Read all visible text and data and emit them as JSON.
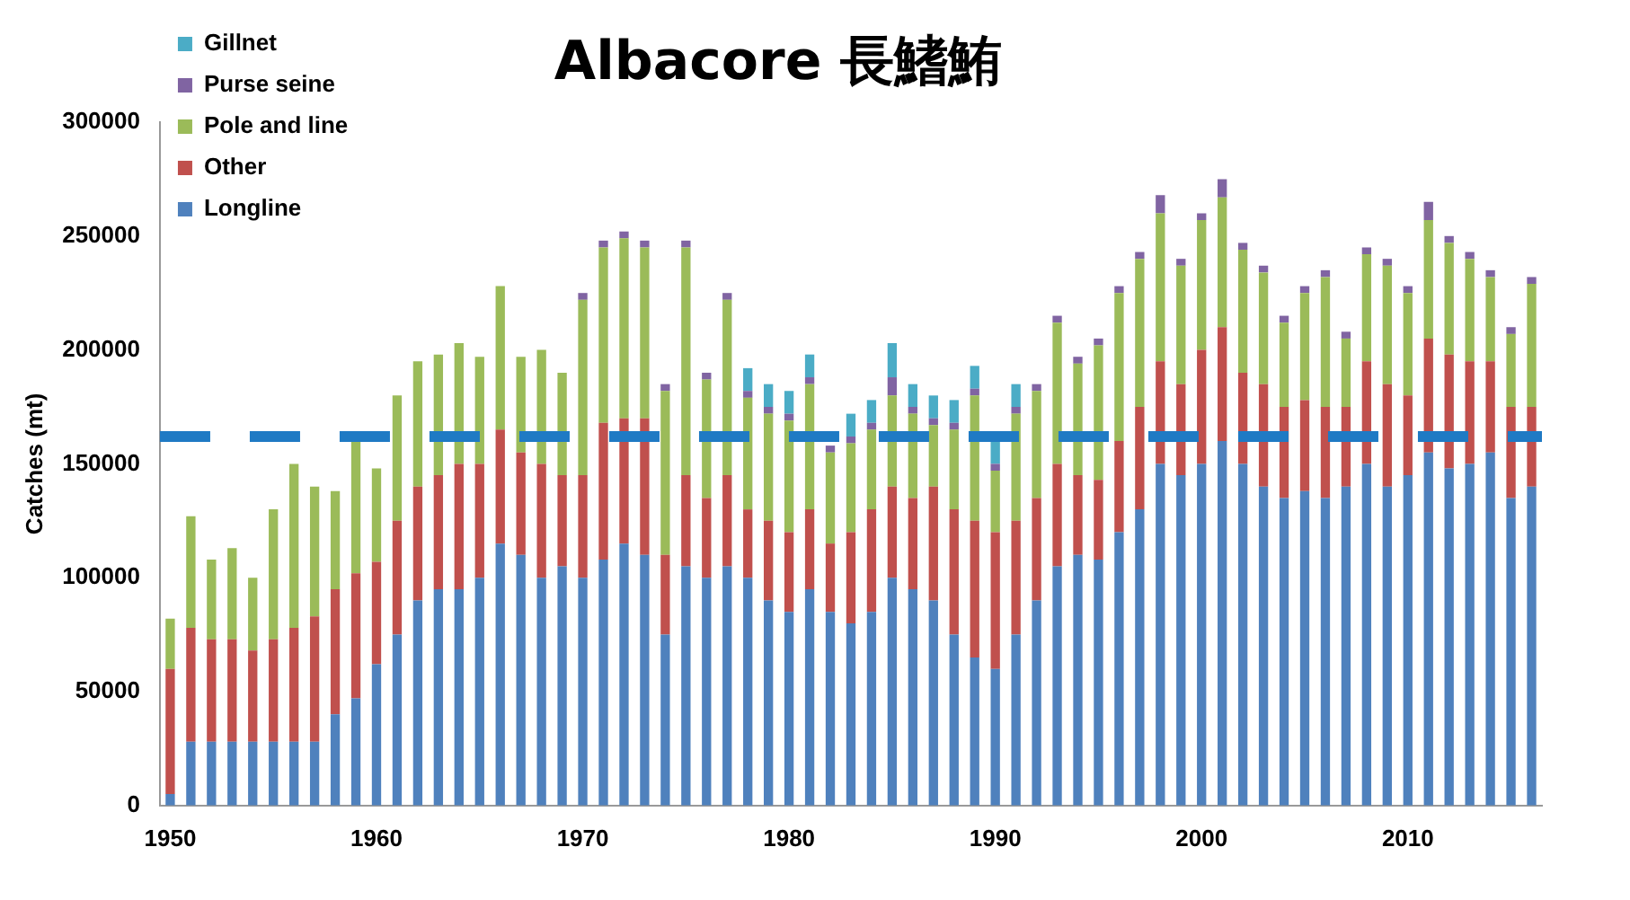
{
  "chart_data": {
    "type": "bar",
    "stacked": true,
    "title": "Albacore 長鰭鮪",
    "ylabel": "Catches (mt)",
    "categories": [
      "1950",
      null,
      null,
      null,
      null,
      null,
      null,
      null,
      null,
      null,
      "1960",
      null,
      null,
      null,
      null,
      null,
      null,
      null,
      null,
      null,
      "1970",
      null,
      null,
      null,
      null,
      null,
      null,
      null,
      null,
      null,
      "1980",
      null,
      null,
      null,
      null,
      null,
      null,
      null,
      null,
      null,
      "1990",
      null,
      null,
      null,
      null,
      null,
      null,
      null,
      null,
      null,
      "2000",
      null,
      null,
      null,
      null,
      null,
      null,
      null,
      null,
      null,
      "2010",
      null,
      null,
      null,
      null,
      null,
      null
    ],
    "series": [
      {
        "name": "Longline",
        "color": "#4f81bd",
        "values": [
          5000,
          28000,
          28000,
          28000,
          28000,
          28000,
          28000,
          28000,
          40000,
          47000,
          62000,
          75000,
          90000,
          95000,
          95000,
          100000,
          115000,
          110000,
          100000,
          105000,
          100000,
          108000,
          115000,
          110000,
          75000,
          105000,
          100000,
          105000,
          100000,
          90000,
          85000,
          95000,
          85000,
          80000,
          85000,
          100000,
          95000,
          90000,
          75000,
          65000,
          60000,
          75000,
          90000,
          105000,
          110000,
          108000,
          120000,
          130000,
          150000,
          145000,
          150000,
          160000,
          150000,
          140000,
          135000,
          138000,
          135000,
          140000,
          150000,
          140000,
          145000,
          155000,
          148000,
          150000,
          155000,
          135000,
          140000
        ]
      },
      {
        "name": "Other",
        "color": "#c0504d",
        "values": [
          55000,
          50000,
          45000,
          45000,
          40000,
          45000,
          50000,
          55000,
          55000,
          55000,
          45000,
          50000,
          50000,
          50000,
          55000,
          50000,
          50000,
          45000,
          50000,
          40000,
          45000,
          60000,
          55000,
          60000,
          35000,
          40000,
          35000,
          40000,
          30000,
          35000,
          35000,
          35000,
          30000,
          40000,
          45000,
          40000,
          40000,
          50000,
          55000,
          60000,
          60000,
          50000,
          45000,
          45000,
          35000,
          35000,
          40000,
          45000,
          45000,
          40000,
          50000,
          50000,
          40000,
          45000,
          40000,
          40000,
          40000,
          35000,
          45000,
          45000,
          35000,
          50000,
          50000,
          45000,
          40000,
          40000,
          35000
        ]
      },
      {
        "name": "Pole and line",
        "color": "#9bbb59",
        "values": [
          22000,
          49000,
          35000,
          40000,
          32000,
          57000,
          72000,
          57000,
          43000,
          58000,
          41000,
          55000,
          55000,
          53000,
          53000,
          47000,
          63000,
          42000,
          50000,
          45000,
          77000,
          77000,
          79000,
          75000,
          72000,
          100000,
          52000,
          77000,
          49000,
          47000,
          49000,
          55000,
          40000,
          39000,
          35000,
          40000,
          37000,
          27000,
          35000,
          55000,
          27000,
          47000,
          47000,
          62000,
          49000,
          59000,
          65000,
          65000,
          65000,
          52000,
          57000,
          57000,
          54000,
          49000,
          37000,
          47000,
          57000,
          30000,
          47000,
          52000,
          45000,
          52000,
          49000,
          45000,
          37000,
          32000,
          54000
        ]
      },
      {
        "name": "Purse seine",
        "color": "#8064a2",
        "values": [
          0,
          0,
          0,
          0,
          0,
          0,
          0,
          0,
          0,
          0,
          0,
          0,
          0,
          0,
          0,
          0,
          0,
          0,
          0,
          0,
          3000,
          3000,
          3000,
          3000,
          3000,
          3000,
          3000,
          3000,
          3000,
          3000,
          3000,
          3000,
          3000,
          3000,
          3000,
          8000,
          3000,
          3000,
          3000,
          3000,
          3000,
          3000,
          3000,
          3000,
          3000,
          3000,
          3000,
          3000,
          8000,
          3000,
          3000,
          8000,
          3000,
          3000,
          3000,
          3000,
          3000,
          3000,
          3000,
          3000,
          3000,
          8000,
          3000,
          3000,
          3000,
          3000,
          3000
        ]
      },
      {
        "name": "Gillnet",
        "color": "#4bacc6",
        "values": [
          0,
          0,
          0,
          0,
          0,
          0,
          0,
          0,
          0,
          0,
          0,
          0,
          0,
          0,
          0,
          0,
          0,
          0,
          0,
          0,
          0,
          0,
          0,
          0,
          0,
          0,
          0,
          0,
          10000,
          10000,
          10000,
          10000,
          null,
          10000,
          10000,
          15000,
          10000,
          10000,
          10000,
          10000,
          10000,
          10000,
          0,
          0,
          0,
          0,
          0,
          0,
          0,
          0,
          0,
          0,
          0,
          0,
          0,
          0,
          0,
          0,
          0,
          0,
          0,
          0,
          0,
          0,
          0,
          0,
          0
        ]
      }
    ],
    "ylim": [
      0,
      300000
    ],
    "yticks": [
      0,
      50000,
      100000,
      150000,
      200000,
      250000,
      300000
    ],
    "ref_lines": [
      {
        "axis": "y",
        "value": 162000,
        "color": "#1f7ac4",
        "line_style": "dashed"
      }
    ],
    "grid": false,
    "legend": "top left"
  }
}
